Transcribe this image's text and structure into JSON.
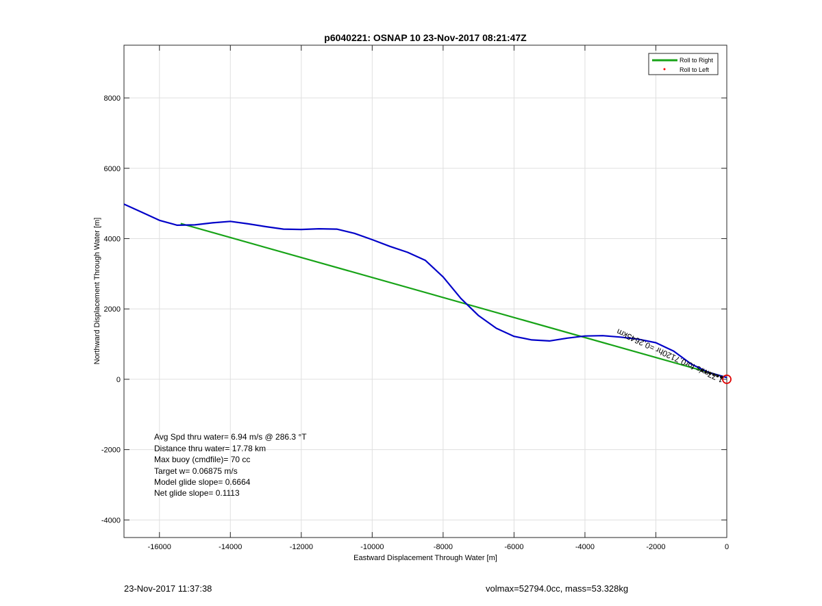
{
  "chart_data": {
    "type": "line",
    "title": "p6040221: OSNAP 10 23-Nov-2017 08:21:47Z",
    "xlabel": "Eastward Displacement Through Water [m]",
    "ylabel": "Northward Displacement Through Water [m]",
    "xlim": [
      -17000,
      0
    ],
    "ylim": [
      -4500,
      9500
    ],
    "xticks": [
      -16000,
      -14000,
      -12000,
      -10000,
      -8000,
      -6000,
      -4000,
      -2000,
      0
    ],
    "yticks": [
      -4000,
      -2000,
      0,
      2000,
      4000,
      6000,
      8000
    ],
    "grid": true,
    "legend": {
      "placement": "top-right",
      "entries": [
        {
          "label": "Roll to Right",
          "color": "#17a317",
          "marker": "line"
        },
        {
          "label": "Roll to Left",
          "color": "#ff0000",
          "marker": "dot"
        }
      ]
    },
    "series": [
      {
        "color": "#17a317",
        "x": [
          0,
          -15400
        ],
        "y": [
          50,
          4430
        ]
      },
      {
        "color": "#0000c8",
        "x": [
          -17000,
          -16500,
          -16000,
          -15500,
          -15000,
          -14500,
          -14000,
          -13500,
          -13000,
          -12500,
          -12000,
          -11500,
          -11000,
          -10500,
          -10000,
          -9500,
          -9000,
          -8500,
          -8000,
          -7500,
          -7000,
          -6500,
          -6000,
          -5500,
          -5000,
          -4500,
          -4000,
          -3500,
          -3000,
          -2500,
          -2000,
          -1500,
          -1000,
          -500,
          0
        ],
        "y": [
          4980,
          4750,
          4520,
          4380,
          4390,
          4450,
          4490,
          4420,
          4340,
          4270,
          4260,
          4280,
          4270,
          4150,
          3970,
          3780,
          3610,
          3380,
          2910,
          2300,
          1810,
          1450,
          1220,
          1120,
          1090,
          1170,
          1230,
          1240,
          1200,
          1140,
          1040,
          800,
          430,
          190,
          50
        ]
      }
    ],
    "annotations": {
      "rotated_label": "1.77m/s for0.7120hr =0.2645km",
      "stats": [
        "Avg Spd thru water=  6.94 m/s @ 286.3 °T",
        "Distance thru water= 17.78 km",
        "Max buoy (cmdfile)= 70 cc",
        "Target w= 0.06875 m/s",
        "Model glide slope= 0.6664",
        "Net glide slope= 0.1113"
      ],
      "end_marker_color": "#e00000"
    }
  },
  "footer": {
    "timestamp": "23-Nov-2017 11:37:38",
    "mass_info": "volmax=52794.0cc, mass=53.328kg"
  }
}
